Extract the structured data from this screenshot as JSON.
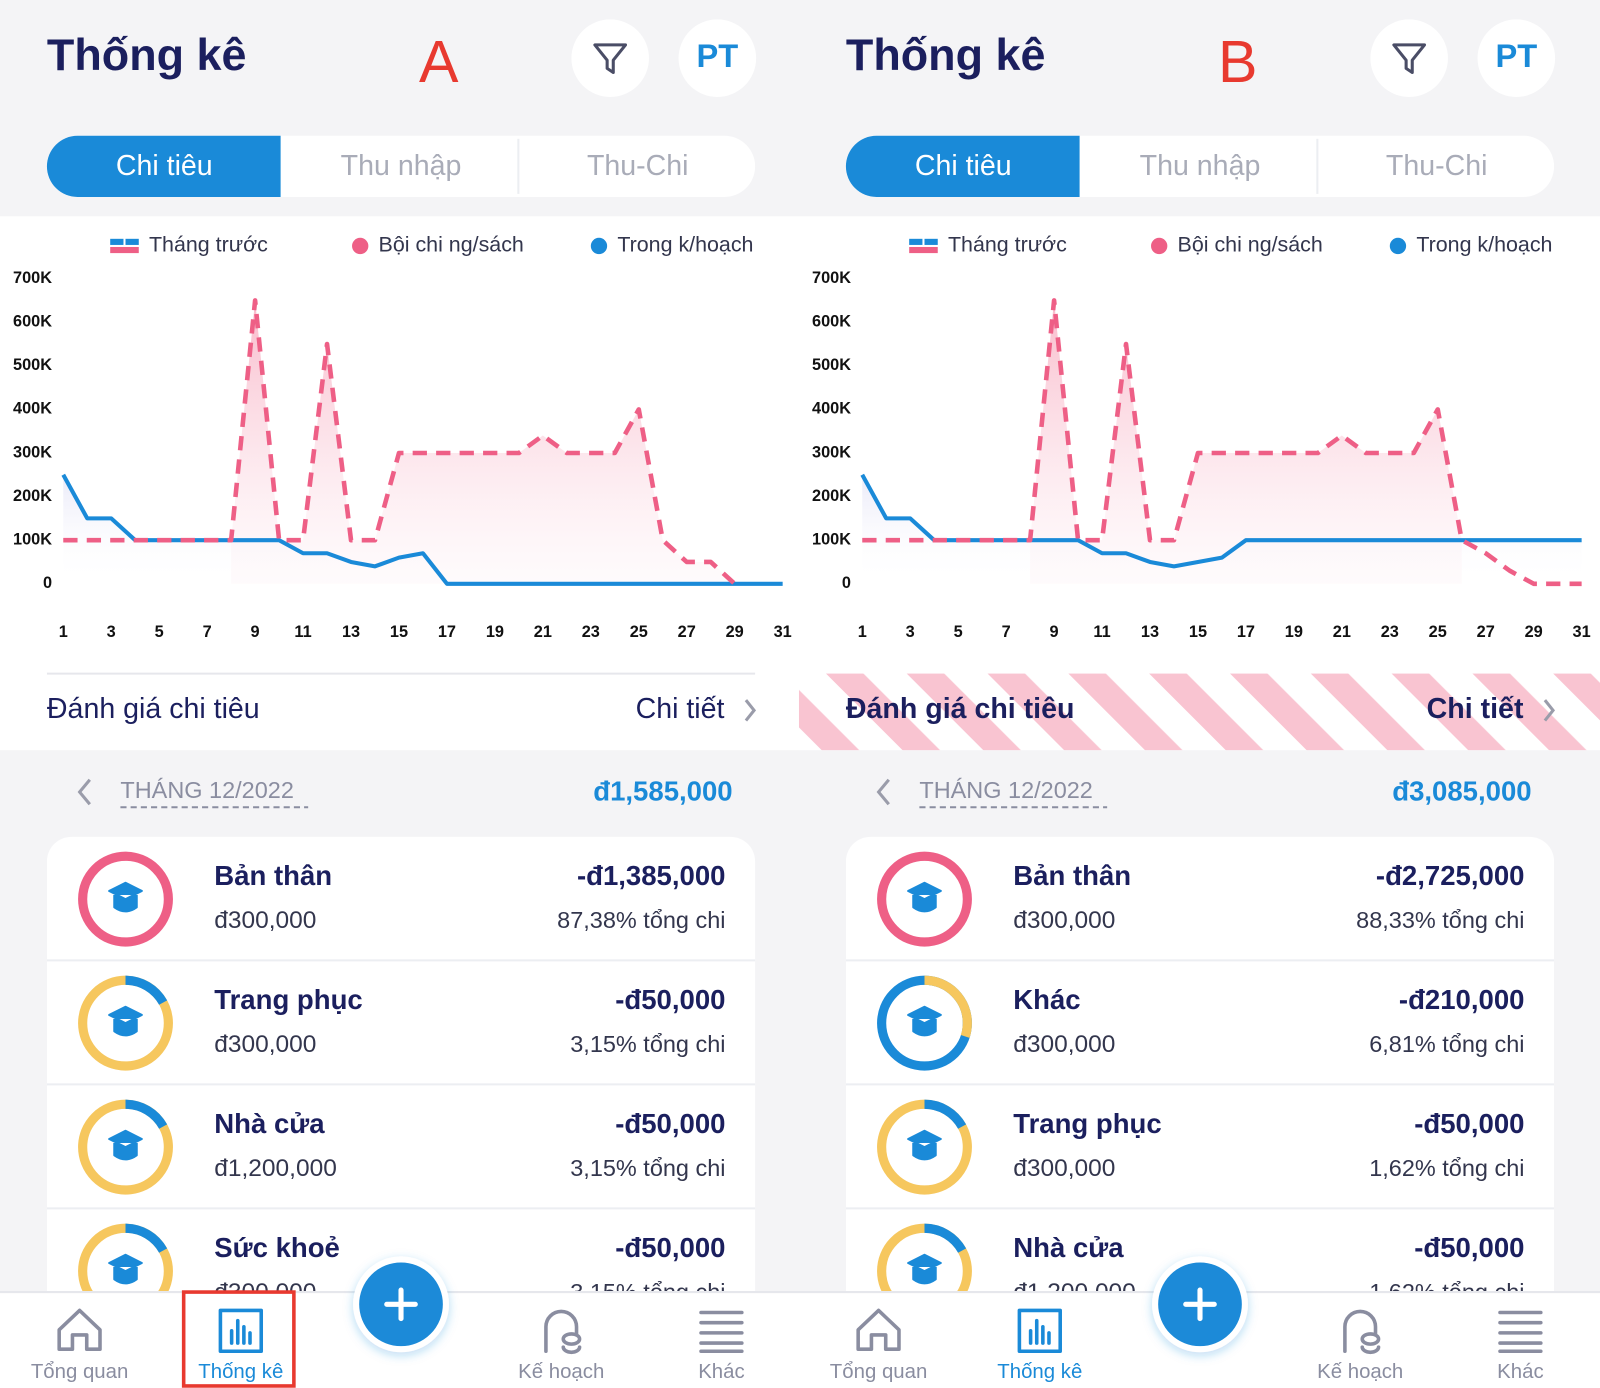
{
  "panels": [
    {
      "label": "A",
      "title": "Thống kê",
      "avatar": "PT",
      "tabs": [
        "Chi tiêu",
        "Thu nhập",
        "Thu-Chi"
      ],
      "review": {
        "title": "Đánh giá chi tiêu",
        "link": "Chi tiết",
        "highlighted": false
      },
      "month": "THÁNG 12/2022",
      "total": "đ1,585,000",
      "items": [
        {
          "name": "Bản thân",
          "budget": "đ300,000",
          "amount": "-đ1,385,000",
          "share": "87,38% tổng chi"
        },
        {
          "name": "Trang phục",
          "budget": "đ300,000",
          "amount": "-đ50,000",
          "share": "3,15% tổng chi"
        },
        {
          "name": "Nhà cửa",
          "budget": "đ1,200,000",
          "amount": "-đ50,000",
          "share": "3,15% tổng chi"
        },
        {
          "name": "Sức khoẻ",
          "budget": "đ300,000",
          "amount": "-đ50,000",
          "share": "3,15% tổng chi"
        }
      ],
      "nav": [
        "Tổng quan",
        "Thống kê",
        "Kế hoạch",
        "Khác"
      ],
      "nav_boxed": true
    },
    {
      "label": "B",
      "title": "Thống kê",
      "avatar": "PT",
      "tabs": [
        "Chi tiêu",
        "Thu nhập",
        "Thu-Chi"
      ],
      "review": {
        "title": "Đánh giá chi tiêu",
        "link": "Chi tiết",
        "highlighted": true
      },
      "month": "THÁNG 12/2022",
      "total": "đ3,085,000",
      "items": [
        {
          "name": "Bản thân",
          "budget": "đ300,000",
          "amount": "-đ2,725,000",
          "share": "88,33% tổng chi"
        },
        {
          "name": "Khác",
          "budget": "đ300,000",
          "amount": "-đ210,000",
          "share": "6,81% tổng chi"
        },
        {
          "name": "Trang phục",
          "budget": "đ300,000",
          "amount": "-đ50,000",
          "share": "1,62% tổng chi"
        },
        {
          "name": "Nhà cửa",
          "budget": "đ1,200,000",
          "amount": "-đ50,000",
          "share": "1,62% tổng chi"
        }
      ],
      "nav": [
        "Tổng quan",
        "Thống kê",
        "Kế hoạch",
        "Khác"
      ],
      "nav_boxed": false
    }
  ],
  "chart_data": [
    {
      "type": "line",
      "x": [
        1,
        2,
        3,
        4,
        5,
        6,
        7,
        8,
        9,
        10,
        11,
        12,
        13,
        14,
        15,
        16,
        17,
        18,
        19,
        20,
        21,
        22,
        23,
        24,
        25,
        26,
        27,
        28,
        29,
        30,
        31
      ],
      "xlim": [
        1,
        31
      ],
      "xticks": [
        1,
        3,
        5,
        7,
        9,
        11,
        13,
        15,
        17,
        19,
        21,
        23,
        25,
        27,
        29,
        31
      ],
      "ylim": [
        0,
        700000
      ],
      "yticks": [
        {
          "value": 0,
          "label": "0"
        },
        {
          "value": 100000,
          "label": "100K"
        },
        {
          "value": 200000,
          "label": "200K"
        },
        {
          "value": 300000,
          "label": "300K"
        },
        {
          "value": 400000,
          "label": "400K"
        },
        {
          "value": 500000,
          "label": "500K"
        },
        {
          "value": 600000,
          "label": "600K"
        },
        {
          "value": 700000,
          "label": "700K"
        }
      ],
      "grid": false,
      "series": [
        {
          "name": "Tháng trước",
          "type": "dashed-line",
          "color": "#ee5f86",
          "values": [
            100000,
            100000,
            100000,
            100000,
            100000,
            100000,
            100000,
            100000,
            650000,
            100000,
            100000,
            550000,
            100000,
            100000,
            300000,
            300000,
            300000,
            300000,
            300000,
            300000,
            340000,
            300000,
            300000,
            300000,
            400000,
            100000,
            50000,
            50000,
            0,
            null,
            null
          ]
        },
        {
          "name": "Bội chi ng/sách",
          "type": "area",
          "color": "#ee5f86",
          "values": [
            null,
            null,
            null,
            null,
            null,
            null,
            null,
            100000,
            650000,
            100000,
            100000,
            550000,
            100000,
            100000,
            300000,
            300000,
            300000,
            300000,
            300000,
            300000,
            340000,
            300000,
            300000,
            300000,
            400000,
            100000,
            50000,
            50000,
            0,
            null,
            null
          ]
        },
        {
          "name": "Trong k/hoạch",
          "type": "line",
          "color": "#1a8ad8",
          "values": [
            250000,
            150000,
            150000,
            100000,
            100000,
            100000,
            100000,
            100000,
            100000,
            100000,
            70000,
            70000,
            50000,
            40000,
            60000,
            70000,
            0,
            0,
            0,
            0,
            0,
            0,
            0,
            0,
            0,
            0,
            0,
            0,
            0,
            0,
            0
          ]
        }
      ]
    },
    {
      "type": "line",
      "x": [
        1,
        2,
        3,
        4,
        5,
        6,
        7,
        8,
        9,
        10,
        11,
        12,
        13,
        14,
        15,
        16,
        17,
        18,
        19,
        20,
        21,
        22,
        23,
        24,
        25,
        26,
        27,
        28,
        29,
        30,
        31
      ],
      "xlim": [
        1,
        31
      ],
      "xticks": [
        1,
        3,
        5,
        7,
        9,
        11,
        13,
        15,
        17,
        19,
        21,
        23,
        25,
        27,
        29,
        31
      ],
      "ylim": [
        0,
        700000
      ],
      "yticks": [
        {
          "value": 0,
          "label": "0"
        },
        {
          "value": 100000,
          "label": "100K"
        },
        {
          "value": 200000,
          "label": "200K"
        },
        {
          "value": 300000,
          "label": "300K"
        },
        {
          "value": 400000,
          "label": "400K"
        },
        {
          "value": 500000,
          "label": "500K"
        },
        {
          "value": 600000,
          "label": "600K"
        },
        {
          "value": 700000,
          "label": "700K"
        }
      ],
      "grid": false,
      "series": [
        {
          "name": "Tháng trước",
          "type": "dashed-line",
          "color": "#ee5f86",
          "values": [
            100000,
            100000,
            100000,
            100000,
            100000,
            100000,
            100000,
            100000,
            650000,
            100000,
            100000,
            550000,
            100000,
            100000,
            300000,
            300000,
            300000,
            300000,
            300000,
            300000,
            340000,
            300000,
            300000,
            300000,
            400000,
            100000,
            70000,
            30000,
            0,
            0,
            0
          ]
        },
        {
          "name": "Bội chi ng/sách",
          "type": "area",
          "color": "#ee5f86",
          "values": [
            null,
            null,
            null,
            null,
            null,
            null,
            null,
            100000,
            650000,
            100000,
            100000,
            550000,
            100000,
            100000,
            300000,
            300000,
            300000,
            300000,
            300000,
            300000,
            340000,
            300000,
            300000,
            300000,
            400000,
            100000,
            null,
            null,
            null,
            null,
            null
          ]
        },
        {
          "name": "Trong k/hoạch",
          "type": "line",
          "color": "#1a8ad8",
          "values": [
            250000,
            150000,
            150000,
            100000,
            100000,
            100000,
            100000,
            100000,
            100000,
            100000,
            70000,
            70000,
            50000,
            40000,
            50000,
            60000,
            100000,
            100000,
            100000,
            100000,
            100000,
            100000,
            100000,
            100000,
            100000,
            100000,
            100000,
            100000,
            100000,
            100000,
            100000
          ]
        }
      ]
    }
  ]
}
